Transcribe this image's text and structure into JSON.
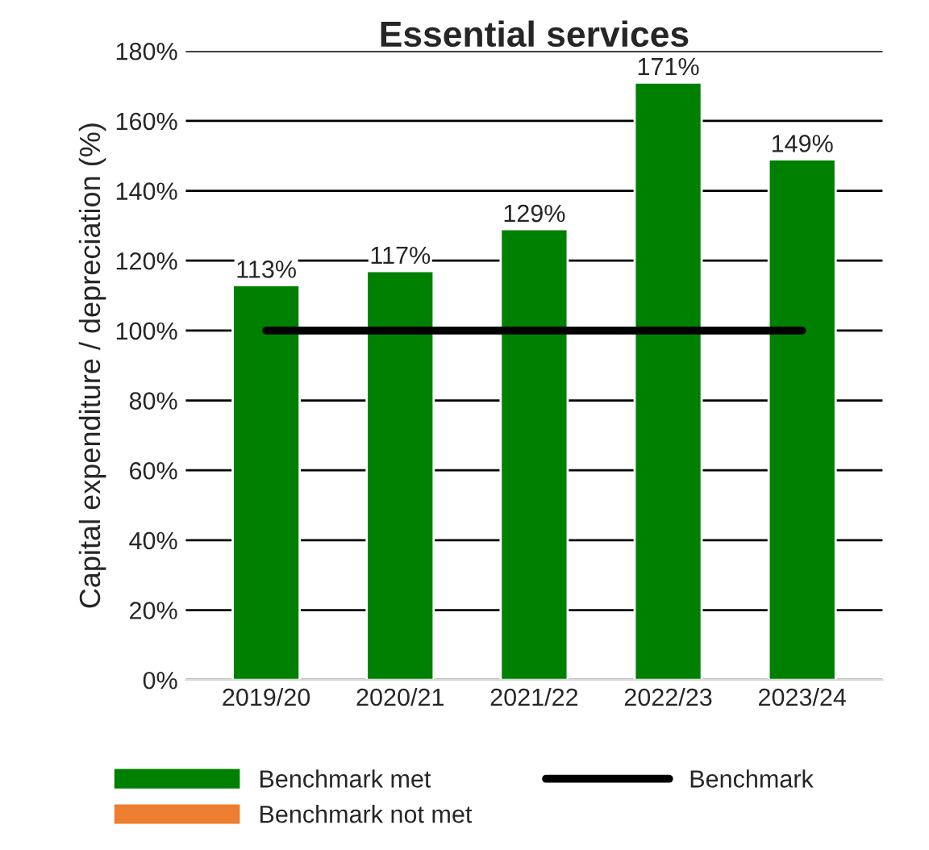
{
  "chart_data": {
    "type": "bar",
    "title": "Essential services",
    "ylabel": "Capital expenditure / depreciation (%)",
    "categories": [
      "2019/20",
      "2020/21",
      "2021/22",
      "2022/23",
      "2023/24"
    ],
    "series": [
      {
        "name": "Benchmark met",
        "color": "#008000",
        "values": [
          113,
          117,
          129,
          171,
          149
        ],
        "value_labels": [
          "113%",
          "117%",
          "129%",
          "171%",
          "149%"
        ]
      },
      {
        "name": "Benchmark not met",
        "color": "#ed7d31",
        "values": [
          null,
          null,
          null,
          null,
          null
        ]
      },
      {
        "name": "Benchmark",
        "type": "line",
        "color": "#000000",
        "values": [
          100,
          100,
          100,
          100,
          100
        ]
      }
    ],
    "ylim": [
      0,
      180
    ],
    "yticks": [
      {
        "value": 0,
        "label": "0%"
      },
      {
        "value": 20,
        "label": "20%"
      },
      {
        "value": 40,
        "label": "40%"
      },
      {
        "value": 60,
        "label": "60%"
      },
      {
        "value": 80,
        "label": "80%"
      },
      {
        "value": 100,
        "label": "100%"
      },
      {
        "value": 120,
        "label": "120%"
      },
      {
        "value": 140,
        "label": "140%"
      },
      {
        "value": 160,
        "label": "160%"
      },
      {
        "value": 180,
        "label": "180%"
      }
    ],
    "grid": "y",
    "legend": "bottom"
  }
}
